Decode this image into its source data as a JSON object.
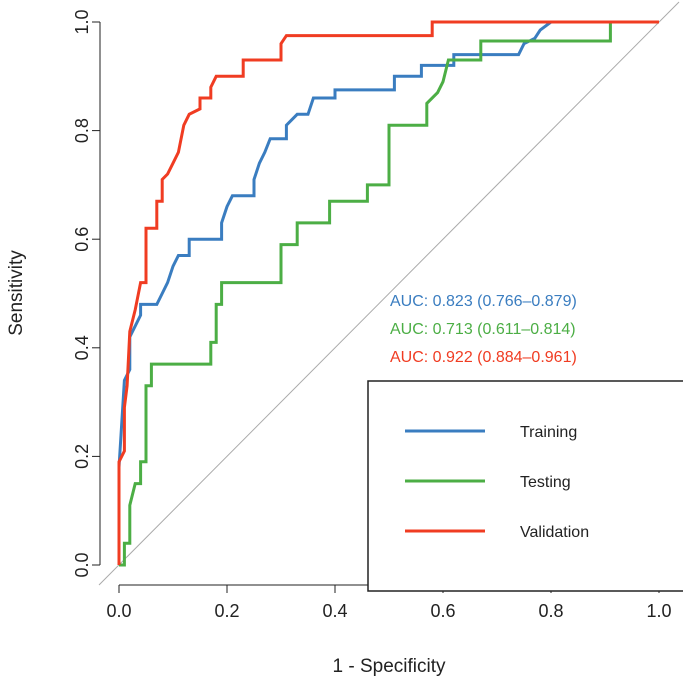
{
  "chart_data": {
    "type": "line",
    "title": "",
    "xlabel": "1 - Specificity",
    "ylabel": "Sensitivity",
    "xlim": [
      0,
      1
    ],
    "ylim": [
      0,
      1
    ],
    "xticks": [
      "0.0",
      "0.2",
      "0.4",
      "0.6",
      "0.8",
      "1.0"
    ],
    "yticks": [
      "0.0",
      "0.2",
      "0.4",
      "0.6",
      "0.8",
      "1.0"
    ],
    "legend_position": "bottom-right",
    "series": [
      {
        "name": "Training",
        "color": "#3a7dc0",
        "auc": "AUC: 0.823 (0.766–0.879)",
        "points": [
          [
            0,
            0
          ],
          [
            0,
            0.18
          ],
          [
            0.01,
            0.34
          ],
          [
            0.02,
            0.36
          ],
          [
            0.02,
            0.42
          ],
          [
            0.03,
            0.44
          ],
          [
            0.04,
            0.46
          ],
          [
            0.04,
            0.48
          ],
          [
            0.07,
            0.48
          ],
          [
            0.08,
            0.5
          ],
          [
            0.09,
            0.52
          ],
          [
            0.1,
            0.55
          ],
          [
            0.11,
            0.57
          ],
          [
            0.13,
            0.57
          ],
          [
            0.13,
            0.6
          ],
          [
            0.19,
            0.6
          ],
          [
            0.19,
            0.63
          ],
          [
            0.2,
            0.66
          ],
          [
            0.21,
            0.68
          ],
          [
            0.25,
            0.68
          ],
          [
            0.25,
            0.71
          ],
          [
            0.26,
            0.74
          ],
          [
            0.27,
            0.76
          ],
          [
            0.28,
            0.785
          ],
          [
            0.31,
            0.785
          ],
          [
            0.31,
            0.81
          ],
          [
            0.33,
            0.83
          ],
          [
            0.35,
            0.83
          ],
          [
            0.36,
            0.86
          ],
          [
            0.4,
            0.86
          ],
          [
            0.4,
            0.875
          ],
          [
            0.51,
            0.875
          ],
          [
            0.51,
            0.9
          ],
          [
            0.56,
            0.9
          ],
          [
            0.56,
            0.92
          ],
          [
            0.62,
            0.92
          ],
          [
            0.62,
            0.94
          ],
          [
            0.74,
            0.94
          ],
          [
            0.75,
            0.96
          ],
          [
            0.77,
            0.97
          ],
          [
            0.78,
            0.985
          ],
          [
            0.8,
            1
          ],
          [
            1,
            1
          ]
        ]
      },
      {
        "name": "Testing",
        "color": "#4cae45",
        "auc": "AUC: 0.713 (0.611–0.814)",
        "points": [
          [
            0,
            0
          ],
          [
            0.01,
            0
          ],
          [
            0.01,
            0.04
          ],
          [
            0.02,
            0.04
          ],
          [
            0.02,
            0.11
          ],
          [
            0.03,
            0.15
          ],
          [
            0.04,
            0.15
          ],
          [
            0.04,
            0.19
          ],
          [
            0.05,
            0.19
          ],
          [
            0.05,
            0.33
          ],
          [
            0.06,
            0.33
          ],
          [
            0.06,
            0.37
          ],
          [
            0.17,
            0.37
          ],
          [
            0.17,
            0.41
          ],
          [
            0.18,
            0.41
          ],
          [
            0.18,
            0.48
          ],
          [
            0.19,
            0.48
          ],
          [
            0.19,
            0.52
          ],
          [
            0.3,
            0.52
          ],
          [
            0.3,
            0.59
          ],
          [
            0.33,
            0.59
          ],
          [
            0.33,
            0.63
          ],
          [
            0.39,
            0.63
          ],
          [
            0.39,
            0.67
          ],
          [
            0.46,
            0.67
          ],
          [
            0.46,
            0.7
          ],
          [
            0.5,
            0.7
          ],
          [
            0.5,
            0.81
          ],
          [
            0.57,
            0.81
          ],
          [
            0.57,
            0.85
          ],
          [
            0.59,
            0.87
          ],
          [
            0.6,
            0.89
          ],
          [
            0.61,
            0.93
          ],
          [
            0.67,
            0.93
          ],
          [
            0.67,
            0.965
          ],
          [
            0.91,
            0.965
          ],
          [
            0.91,
            1
          ],
          [
            1,
            1
          ]
        ]
      },
      {
        "name": "Validation",
        "color": "#f03c22",
        "auc": "AUC: 0.922 (0.884–0.961)",
        "points": [
          [
            0,
            0
          ],
          [
            0,
            0.19
          ],
          [
            0.01,
            0.21
          ],
          [
            0.01,
            0.29
          ],
          [
            0.015,
            0.33
          ],
          [
            0.02,
            0.43
          ],
          [
            0.03,
            0.47
          ],
          [
            0.04,
            0.52
          ],
          [
            0.05,
            0.52
          ],
          [
            0.05,
            0.62
          ],
          [
            0.07,
            0.62
          ],
          [
            0.07,
            0.67
          ],
          [
            0.08,
            0.67
          ],
          [
            0.08,
            0.71
          ],
          [
            0.09,
            0.72
          ],
          [
            0.1,
            0.74
          ],
          [
            0.11,
            0.76
          ],
          [
            0.12,
            0.81
          ],
          [
            0.13,
            0.83
          ],
          [
            0.15,
            0.84
          ],
          [
            0.15,
            0.86
          ],
          [
            0.17,
            0.86
          ],
          [
            0.17,
            0.88
          ],
          [
            0.18,
            0.9
          ],
          [
            0.23,
            0.9
          ],
          [
            0.23,
            0.93
          ],
          [
            0.3,
            0.93
          ],
          [
            0.3,
            0.96
          ],
          [
            0.31,
            0.975
          ],
          [
            0.58,
            0.975
          ],
          [
            0.58,
            1
          ],
          [
            1,
            1
          ]
        ]
      }
    ]
  }
}
